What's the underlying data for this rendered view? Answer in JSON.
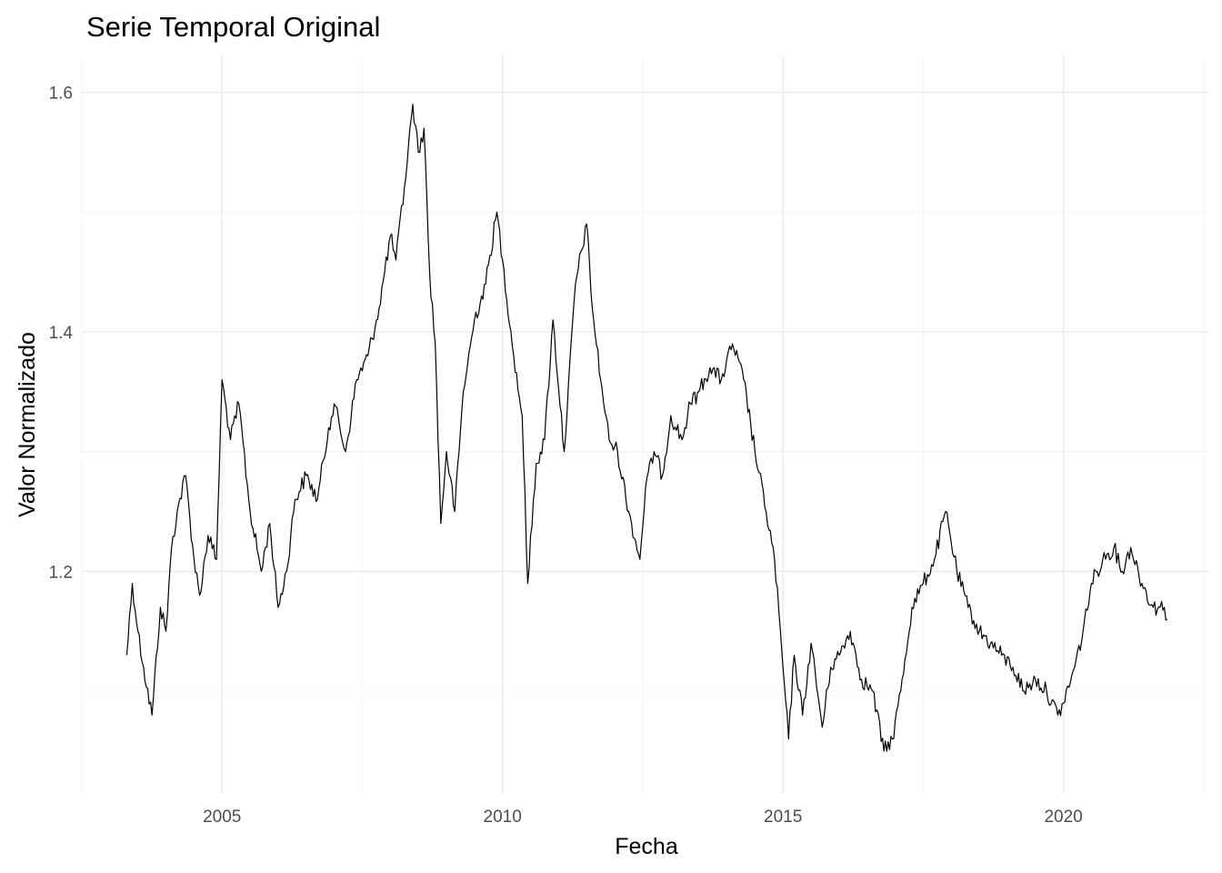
{
  "chart_data": {
    "type": "line",
    "title": "Serie Temporal Original",
    "xlabel": "Fecha",
    "ylabel": "Valor Normalizado",
    "x_tick_labels": [
      "2005",
      "2010",
      "2015",
      "2020"
    ],
    "y_tick_labels": [
      "1.2",
      "1.4",
      "1.6"
    ],
    "xlim": [
      2002.5,
      2022.6
    ],
    "ylim": [
      1.015,
      1.63
    ],
    "x_major_ticks": [
      2005,
      2010,
      2015,
      2020
    ],
    "x_minor_ticks": [
      2002.5,
      2007.5,
      2012.5,
      2017.5,
      2022.5
    ],
    "y_major_ticks": [
      1.2,
      1.4,
      1.6
    ],
    "y_minor_ticks": [
      1.1,
      1.3,
      1.5
    ],
    "grid": true,
    "legend": "none",
    "line_color": "#000000",
    "series": [
      {
        "x": [
          2003.3,
          2003.4,
          2003.5,
          2003.6,
          2003.75,
          2003.9,
          2004.0,
          2004.1,
          2004.2,
          2004.35,
          2004.5,
          2004.6,
          2004.75,
          2004.9,
          2005.0,
          2005.15,
          2005.3,
          2005.5,
          2005.7,
          2005.85,
          2006.0,
          2006.15,
          2006.3,
          2006.5,
          2006.7,
          2006.9,
          2007.0,
          2007.2,
          2007.4,
          2007.6,
          2007.8,
          2008.0,
          2008.1,
          2008.25,
          2008.4,
          2008.5,
          2008.6,
          2008.7,
          2008.8,
          2008.9,
          2009.0,
          2009.15,
          2009.3,
          2009.5,
          2009.7,
          2009.9,
          2010.0,
          2010.2,
          2010.35,
          2010.45,
          2010.6,
          2010.75,
          2010.9,
          2011.1,
          2011.3,
          2011.5,
          2011.6,
          2011.75,
          2011.9,
          2012.05,
          2012.25,
          2012.45,
          2012.55,
          2012.7,
          2012.85,
          2013.0,
          2013.2,
          2013.35,
          2013.5,
          2013.7,
          2013.9,
          2014.1,
          2014.3,
          2014.5,
          2014.7,
          2014.85,
          2015.0,
          2015.1,
          2015.2,
          2015.35,
          2015.5,
          2015.7,
          2015.85,
          2016.0,
          2016.2,
          2016.4,
          2016.6,
          2016.8,
          2016.95,
          2017.1,
          2017.3,
          2017.5,
          2017.7,
          2017.9,
          2018.1,
          2018.3,
          2018.5,
          2018.7,
          2018.9,
          2019.1,
          2019.3,
          2019.5,
          2019.7,
          2019.9,
          2020.0,
          2020.2,
          2020.35,
          2020.5,
          2020.7,
          2020.9,
          2021.05,
          2021.2,
          2021.4,
          2021.6,
          2021.8,
          2021.85
        ],
        "y": [
          1.13,
          1.19,
          1.15,
          1.12,
          1.08,
          1.17,
          1.15,
          1.22,
          1.25,
          1.28,
          1.21,
          1.18,
          1.23,
          1.21,
          1.36,
          1.31,
          1.34,
          1.25,
          1.2,
          1.24,
          1.17,
          1.2,
          1.26,
          1.28,
          1.26,
          1.32,
          1.34,
          1.3,
          1.36,
          1.38,
          1.42,
          1.48,
          1.46,
          1.52,
          1.59,
          1.55,
          1.57,
          1.45,
          1.39,
          1.24,
          1.3,
          1.25,
          1.35,
          1.41,
          1.44,
          1.5,
          1.46,
          1.38,
          1.33,
          1.19,
          1.29,
          1.31,
          1.41,
          1.3,
          1.44,
          1.49,
          1.42,
          1.36,
          1.31,
          1.3,
          1.25,
          1.21,
          1.27,
          1.3,
          1.28,
          1.33,
          1.31,
          1.34,
          1.35,
          1.37,
          1.36,
          1.39,
          1.36,
          1.3,
          1.25,
          1.21,
          1.12,
          1.06,
          1.13,
          1.08,
          1.14,
          1.07,
          1.12,
          1.13,
          1.15,
          1.11,
          1.1,
          1.05,
          1.06,
          1.1,
          1.17,
          1.19,
          1.21,
          1.25,
          1.2,
          1.17,
          1.15,
          1.14,
          1.13,
          1.12,
          1.1,
          1.11,
          1.1,
          1.08,
          1.09,
          1.12,
          1.15,
          1.19,
          1.21,
          1.22,
          1.2,
          1.22,
          1.19,
          1.17,
          1.17,
          1.16
        ]
      }
    ]
  }
}
